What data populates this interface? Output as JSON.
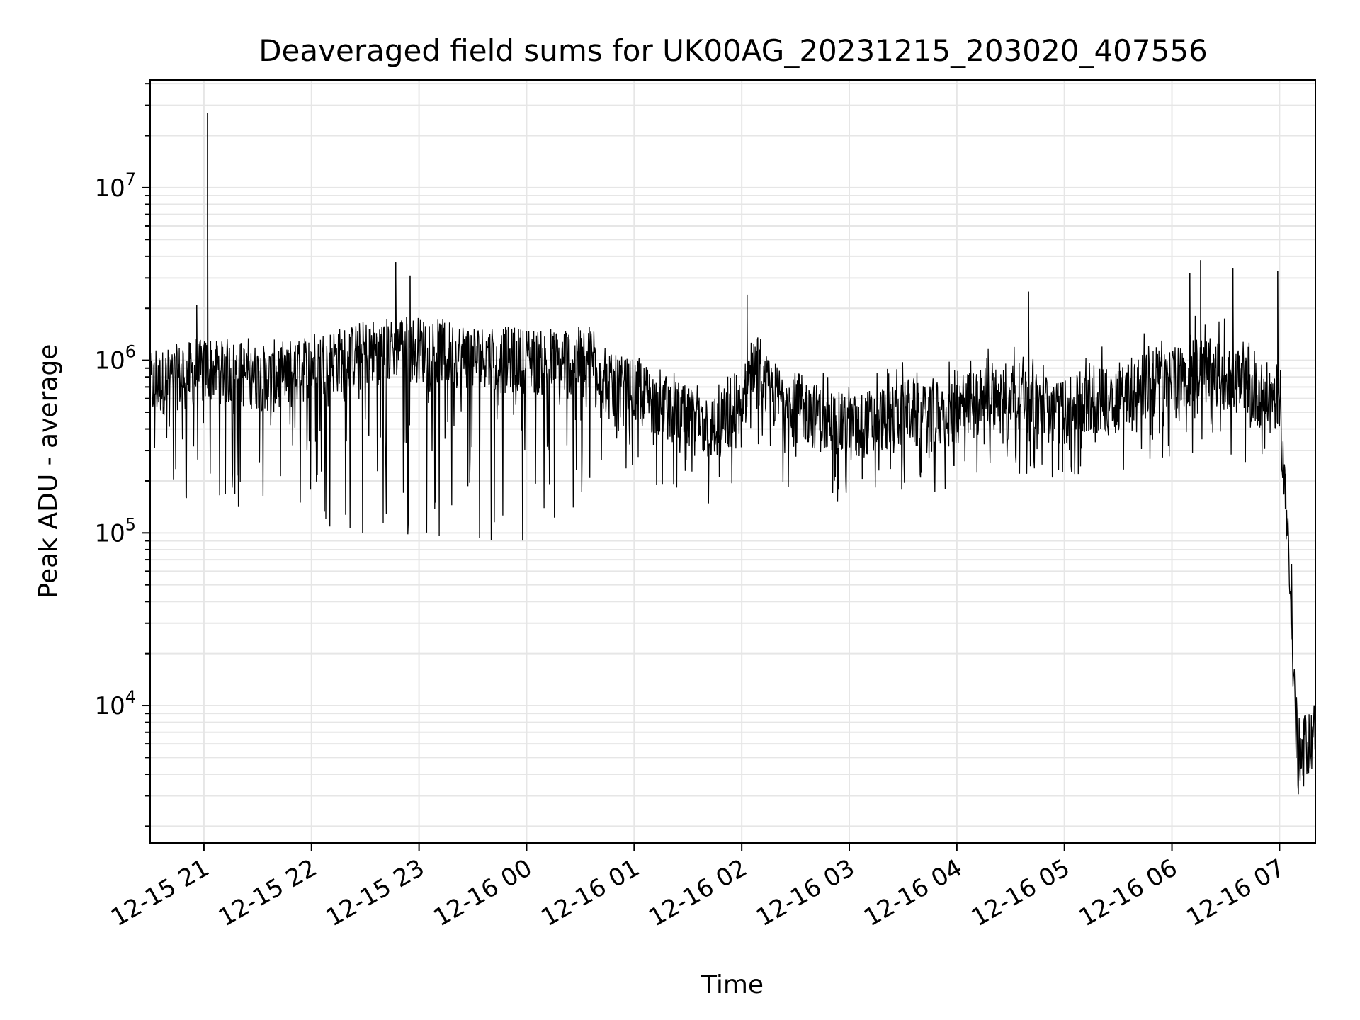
{
  "chart_data": {
    "type": "line",
    "title": "Deaveraged field sums for UK00AG_20231215_203020_407556",
    "xlabel": "Time",
    "ylabel": "Peak ADU - average",
    "yscale": "log",
    "ylim": [
      1600,
      42000000
    ],
    "xlim": [
      "12-15 20:30",
      "12-16 07:20"
    ],
    "grid": true,
    "line_color": "#000000",
    "grid_color": "#e6e6e6",
    "x_ticks": [
      "12-15 21",
      "12-15 22",
      "12-15 23",
      "12-16 00",
      "12-16 01",
      "12-16 02",
      "12-16 03",
      "12-16 04",
      "12-16 05",
      "12-16 06",
      "12-16 07"
    ],
    "y_ticks": [
      {
        "base": "10",
        "exp": "4",
        "value": 10000
      },
      {
        "base": "10",
        "exp": "5",
        "value": 100000
      },
      {
        "base": "10",
        "exp": "6",
        "value": 1000000
      },
      {
        "base": "10",
        "exp": "7",
        "value": 10000000
      }
    ],
    "series": [
      {
        "x": [
          "12-15 20:30",
          "12-15 20:45",
          "12-15 21:00",
          "12-15 21:02",
          "12-15 21:15",
          "12-15 21:30",
          "12-15 21:45",
          "12-15 22:00",
          "12-15 22:15",
          "12-15 22:30",
          "12-15 22:45",
          "12-15 22:48",
          "12-15 23:00",
          "12-15 23:15",
          "12-15 23:30",
          "12-15 23:45",
          "12-16 00:00",
          "12-16 00:15",
          "12-16 00:30",
          "12-16 00:38",
          "12-16 00:45",
          "12-16 01:00",
          "12-16 01:15",
          "12-16 01:30",
          "12-16 01:45",
          "12-16 02:00",
          "12-16 02:05",
          "12-16 02:15",
          "12-16 02:30",
          "12-16 02:45",
          "12-16 03:00",
          "12-16 03:15",
          "12-16 03:30",
          "12-16 03:45",
          "12-16 04:00",
          "12-16 04:15",
          "12-16 04:30",
          "12-16 04:45",
          "12-16 05:00",
          "12-16 05:15",
          "12-16 05:30",
          "12-16 05:45",
          "12-16 06:00",
          "12-16 06:15",
          "12-16 06:30",
          "12-16 06:45",
          "12-16 07:00",
          "12-16 07:03",
          "12-16 07:06",
          "12-16 07:09",
          "12-16 07:12",
          "12-16 07:15",
          "12-16 07:20"
        ],
        "y": [
          700000,
          800000,
          850000,
          900000,
          850000,
          800000,
          750000,
          950000,
          1000000,
          1100000,
          1150000,
          1200000,
          1150000,
          1100000,
          1050000,
          1000000,
          1000000,
          950000,
          1000000,
          1050000,
          700000,
          650000,
          550000,
          450000,
          400000,
          500000,
          900000,
          650000,
          550000,
          450000,
          400000,
          450000,
          500000,
          450000,
          500000,
          600000,
          650000,
          550000,
          500000,
          550000,
          650000,
          700000,
          750000,
          900000,
          800000,
          650000,
          600000,
          180000,
          60000,
          7000,
          5000,
          6000,
          7000
        ],
        "lows": [
          150000,
          130000,
          120000,
          110000,
          130000,
          130000,
          120000,
          110000,
          100000,
          90000,
          90000,
          80000,
          85000,
          90000,
          90000,
          90000,
          90000,
          100000,
          110000,
          200000,
          250000,
          230000,
          180000,
          150000,
          130000,
          200000,
          300000,
          180000,
          170000,
          150000,
          150000,
          160000,
          170000,
          160000,
          180000,
          210000,
          230000,
          200000,
          190000,
          200000,
          230000,
          240000,
          260000,
          300000,
          280000,
          240000,
          200000,
          70000,
          20000,
          3000,
          2500,
          2800,
          3000
        ],
        "highs": [
          1200000,
          1300000,
          1400000,
          1450000,
          1400000,
          1350000,
          1300000,
          1500000,
          1550000,
          1600000,
          1700000,
          1800000,
          1750000,
          1700000,
          1650000,
          1600000,
          1600000,
          1550000,
          1600000,
          1700000,
          1200000,
          1100000,
          900000,
          800000,
          750000,
          900000,
          1800000,
          1100000,
          1000000,
          900000,
          850000,
          900000,
          1000000,
          950000,
          1000000,
          1200000,
          1300000,
          1100000,
          1000000,
          1100000,
          1400000,
          1500000,
          1700000,
          2000000,
          1800000,
          1400000,
          1300000,
          500000,
          150000,
          20000,
          15000,
          18000,
          20000
        ],
        "spikes": [
          {
            "x": "12-15 21:02",
            "y": 27000000
          },
          {
            "x": "12-15 20:56",
            "y": 2100000
          },
          {
            "x": "12-15 22:47",
            "y": 3700000
          },
          {
            "x": "12-15 22:55",
            "y": 3100000
          },
          {
            "x": "12-16 02:03",
            "y": 2400000
          },
          {
            "x": "12-16 04:40",
            "y": 2500000
          },
          {
            "x": "12-16 06:10",
            "y": 3200000
          },
          {
            "x": "12-16 06:16",
            "y": 3800000
          },
          {
            "x": "12-16 06:34",
            "y": 3400000
          },
          {
            "x": "12-16 06:59",
            "y": 3300000
          }
        ]
      }
    ]
  }
}
